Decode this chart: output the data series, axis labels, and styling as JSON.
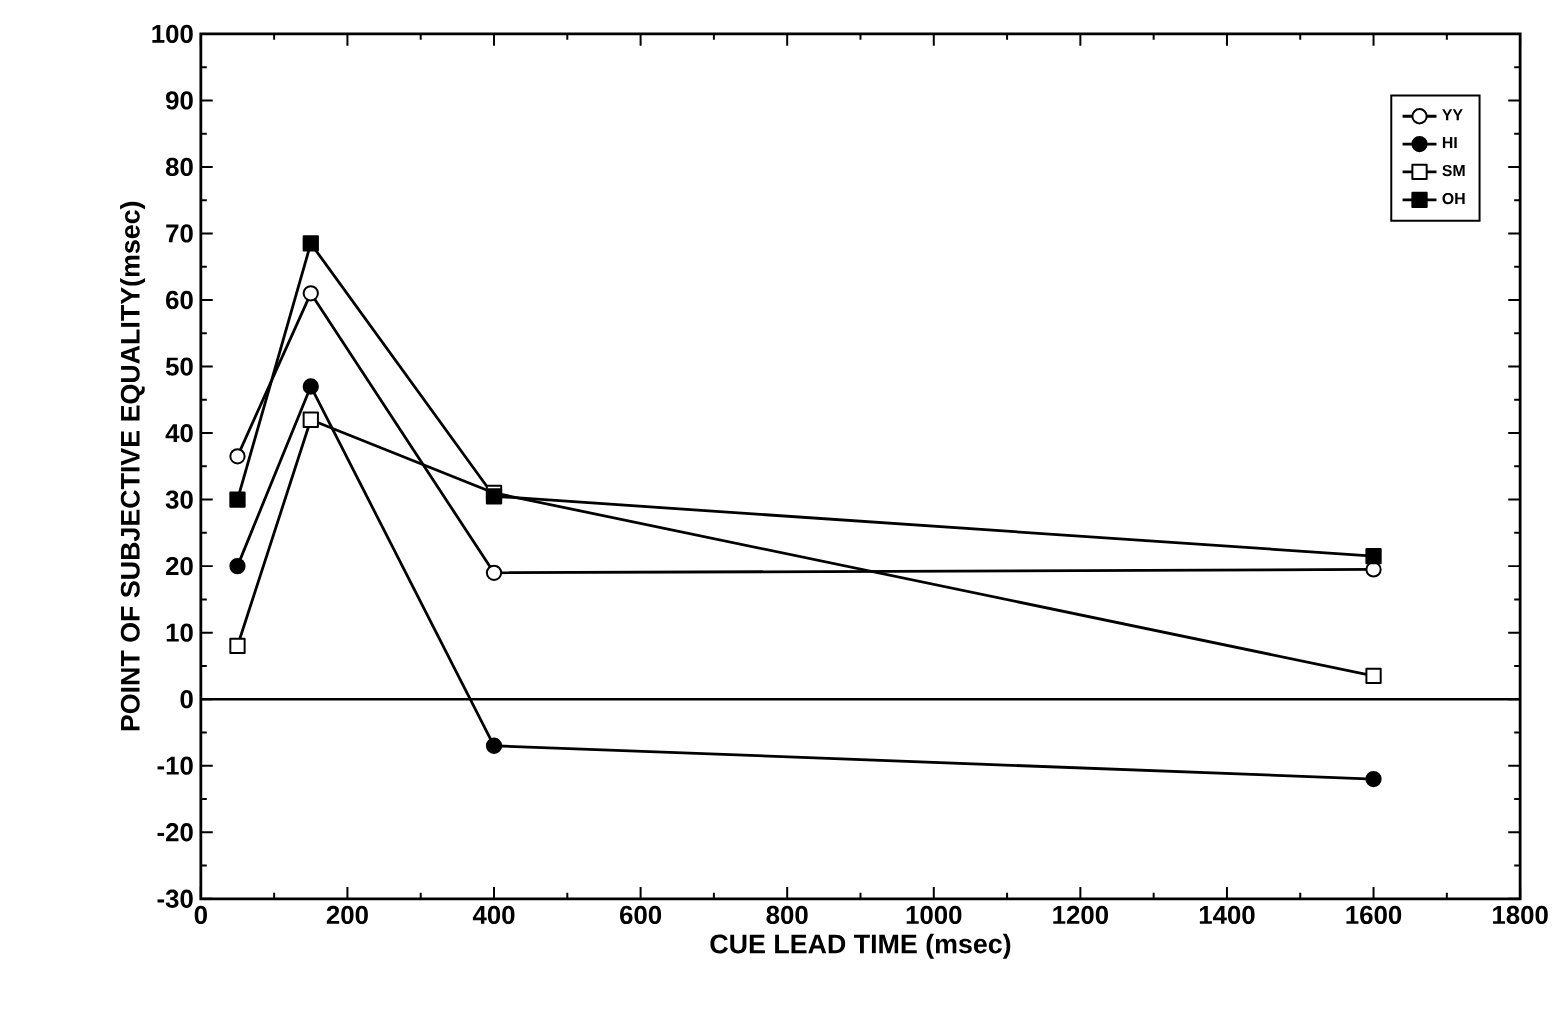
{
  "chart_data": {
    "type": "line",
    "xlabel": "CUE LEAD TIME (msec)",
    "ylabel": "POINT OF SUBJECTIVE EQUALITY(msec)",
    "x": [
      50,
      150,
      400,
      1600
    ],
    "series": [
      {
        "name": "YY",
        "color": "#000000",
        "marker": "circle",
        "values": [
          36.5,
          61,
          19,
          19.5
        ]
      },
      {
        "name": "HI",
        "color": "#000000",
        "marker": "circle",
        "values": [
          20,
          47,
          -7,
          -12
        ]
      },
      {
        "name": "SM",
        "color": "#000000",
        "marker": "square",
        "values": [
          8,
          42,
          31,
          3.5
        ]
      },
      {
        "name": "OH",
        "color": "#000000",
        "marker": "square",
        "values": [
          30,
          68.5,
          30.5,
          21.5
        ]
      }
    ],
    "xlim": [
      0,
      1800
    ],
    "xticks": [
      0,
      200,
      400,
      600,
      800,
      1000,
      1200,
      1400,
      1600,
      1800
    ],
    "ylim": [
      -30,
      100
    ],
    "yticks": [
      -30,
      -20,
      -10,
      0,
      10,
      20,
      30,
      40,
      50,
      60,
      70,
      80,
      90,
      100
    ],
    "ref_lines": [
      {
        "axis": "y",
        "value": 0,
        "color": "#000000"
      }
    ],
    "grid": false,
    "legend": "top right",
    "line_style": "solid"
  }
}
